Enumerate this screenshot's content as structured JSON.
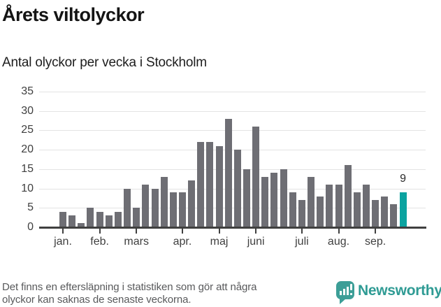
{
  "header": {
    "title": "Årets viltolyckor",
    "subtitle": "Antal olyckor per vecka i Stockholm"
  },
  "chart_data": {
    "type": "bar",
    "title": "Årets viltolyckor",
    "subtitle": "Antal olyckor per vecka i Stockholm",
    "x_unit": "week",
    "x": [
      1,
      2,
      3,
      4,
      5,
      6,
      7,
      8,
      9,
      10,
      11,
      12,
      13,
      14,
      15,
      16,
      17,
      18,
      19,
      20,
      21,
      22,
      23,
      24,
      25,
      26,
      27,
      28,
      29,
      30,
      31,
      32,
      33,
      34,
      35,
      36,
      37,
      38
    ],
    "values": [
      4,
      3,
      1,
      5,
      4,
      3,
      4,
      10,
      5,
      11,
      10,
      13,
      9,
      9,
      12,
      22,
      22,
      21,
      28,
      20,
      15,
      26,
      13,
      14,
      15,
      9,
      7,
      13,
      8,
      11,
      11,
      16,
      9,
      11,
      7,
      8,
      6,
      9
    ],
    "highlight_last_bar": true,
    "last_bar_label": "9",
    "ylim": [
      0,
      35
    ],
    "yticks": [
      0,
      5,
      10,
      15,
      20,
      25,
      30,
      35
    ],
    "month_ticks": [
      {
        "label": "jan.",
        "week": 1
      },
      {
        "label": "feb.",
        "week": 5
      },
      {
        "label": "mars",
        "week": 9
      },
      {
        "label": "apr.",
        "week": 14
      },
      {
        "label": "maj",
        "week": 18
      },
      {
        "label": "juni",
        "week": 22
      },
      {
        "label": "juli",
        "week": 27
      },
      {
        "label": "aug.",
        "week": 31
      },
      {
        "label": "sep.",
        "week": 35
      }
    ],
    "grid": true,
    "legend": null,
    "colors": {
      "bar": "#6e6e74",
      "highlight": "#0ba3a0"
    }
  },
  "footer": {
    "note_line1": "Det finns en eftersläpning i statistiken som gör att några",
    "note_line2": "olyckor kan saknas de senaste veckorna.",
    "logo_text": "Newsworthy"
  }
}
